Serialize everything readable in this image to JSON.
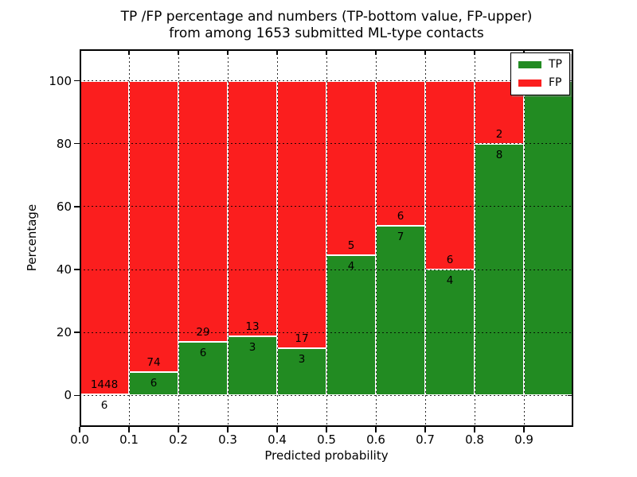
{
  "title": {
    "line1": "TP /FP percentage and numbers (TP-bottom value, FP-upper)",
    "line2": "from among 1653 submitted ML-type contacts"
  },
  "axes": {
    "xlabel": "Predicted probability",
    "ylabel": "Percentage",
    "x_ticks": [
      "0.0",
      "0.1",
      "0.2",
      "0.3",
      "0.4",
      "0.5",
      "0.6",
      "0.7",
      "0.8",
      "0.9"
    ],
    "y_ticks": [
      "0",
      "20",
      "40",
      "60",
      "80",
      "100"
    ]
  },
  "legend": {
    "items": [
      {
        "label": "TP",
        "color": "#228b22"
      },
      {
        "label": "FP",
        "color": "#fb1e1e"
      }
    ]
  },
  "chart_data": {
    "type": "bar",
    "stacked": true,
    "title": "TP /FP percentage and numbers (TP-bottom value, FP-upper) from among 1653 submitted ML-type contacts",
    "total_contacts": 1653,
    "xlabel": "Predicted probability",
    "ylabel": "Percentage",
    "x_bin_starts": [
      0.0,
      0.1,
      0.2,
      0.3,
      0.4,
      0.5,
      0.6,
      0.7,
      0.8,
      0.9
    ],
    "bin_width": 0.1,
    "xlim": [
      0,
      1
    ],
    "ylim": [
      -10,
      110
    ],
    "grid": "dotted",
    "legend_position": "upper right",
    "series": [
      {
        "name": "TP",
        "color": "#228b22",
        "counts": [
          6,
          6,
          6,
          3,
          3,
          4,
          7,
          4,
          8,
          6
        ],
        "pct": [
          0.41,
          7.5,
          17.14,
          18.75,
          15.0,
          44.44,
          53.85,
          40.0,
          80.0,
          100.0
        ]
      },
      {
        "name": "FP",
        "color": "#fb1e1e",
        "counts": [
          1448,
          74,
          29,
          13,
          17,
          5,
          6,
          6,
          2,
          0
        ],
        "pct": [
          99.59,
          92.5,
          82.86,
          81.25,
          85.0,
          55.56,
          46.15,
          60.0,
          20.0,
          0.0
        ]
      }
    ],
    "bar_value_labels": {
      "tp": [
        "6",
        "6",
        "6",
        "3",
        "3",
        "4",
        "7",
        "4",
        "8",
        "6"
      ],
      "fp": [
        "1448",
        "74",
        "29",
        "13",
        "17",
        "5",
        "6",
        "6",
        "2",
        ""
      ]
    }
  }
}
